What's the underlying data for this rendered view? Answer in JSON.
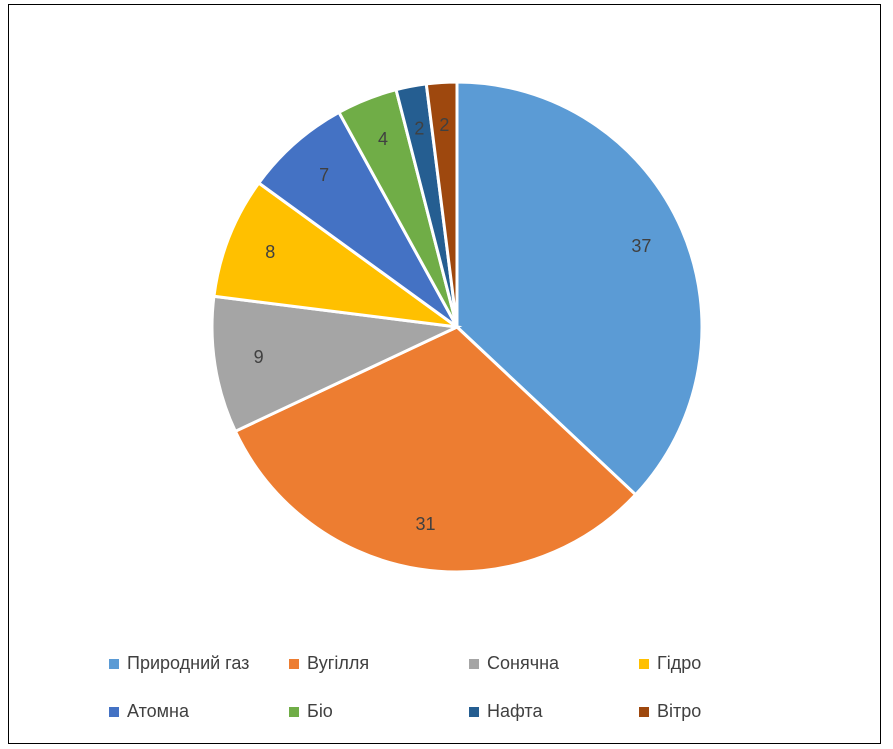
{
  "chart_data": {
    "type": "pie",
    "title": "",
    "categories": [
      "Природний газ",
      "Вугілля",
      "Сонячна",
      "Гідро",
      "Атомна",
      "Біо",
      "Нафта",
      "Вітро"
    ],
    "values": [
      37,
      31,
      9,
      8,
      7,
      4,
      2,
      2
    ],
    "data_labels": [
      "37",
      "31",
      "9",
      "8",
      "7",
      "4",
      "2",
      "2"
    ],
    "colors": [
      "#5B9BD5",
      "#ED7D31",
      "#A5A5A5",
      "#FFC000",
      "#4472C4",
      "#70AD47",
      "#255E91",
      "#9E480E"
    ],
    "legend_position": "bottom",
    "start_angle": "12 o'clock, clockwise"
  }
}
